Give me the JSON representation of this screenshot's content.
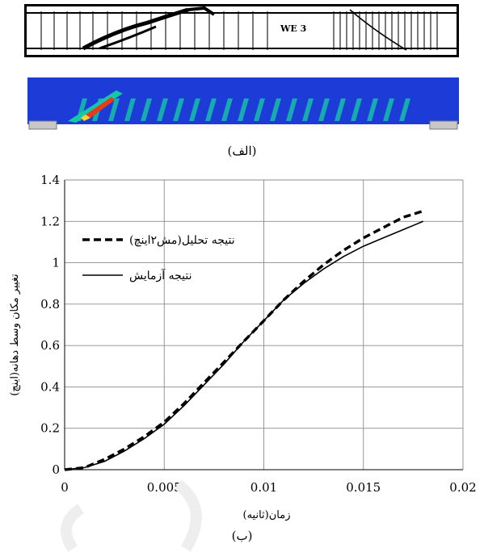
{
  "figure_a": {
    "caption": "(الف)",
    "beam_label": "WE 3",
    "fem_colors": {
      "base": "#1d3bd6",
      "crack": "#15c8a8",
      "hot": "#e53a1c",
      "warm": "#f4d22a"
    }
  },
  "figure_b": {
    "caption": "(ب)"
  },
  "chart_data": {
    "type": "line",
    "title": "",
    "xlabel": "زمان(ثانیه)",
    "ylabel": "تغییر مکان وسط دهانه(اینچ)",
    "xlim": [
      0,
      0.02
    ],
    "ylim": [
      0,
      1.4
    ],
    "x_ticks": [
      0,
      0.005,
      0.01,
      0.015,
      0.02
    ],
    "x_tick_labels": [
      "0",
      "0.005",
      "0.01",
      "0.015",
      "0.02"
    ],
    "y_ticks": [
      0,
      0.2,
      0.4,
      0.6,
      0.8,
      1,
      1.2,
      1.4
    ],
    "y_tick_labels": [
      "0",
      "0.2",
      "0.4",
      "0.6",
      "0.8",
      "1",
      "1.2",
      "1.4"
    ],
    "grid": true,
    "legend_position": "top-left",
    "series": [
      {
        "name": "نتیجه تحلیل(مش۲اینچ)",
        "style": "dashed",
        "color": "#000000",
        "x": [
          0,
          0.001,
          0.002,
          0.003,
          0.004,
          0.005,
          0.006,
          0.007,
          0.008,
          0.009,
          0.01,
          0.011,
          0.012,
          0.013,
          0.014,
          0.015,
          0.016,
          0.017,
          0.018
        ],
        "y": [
          0,
          0.01,
          0.05,
          0.1,
          0.16,
          0.23,
          0.32,
          0.42,
          0.52,
          0.62,
          0.72,
          0.82,
          0.91,
          0.99,
          1.06,
          1.12,
          1.17,
          1.22,
          1.25
        ]
      },
      {
        "name": "نتیجه آزمایش",
        "style": "solid",
        "color": "#000000",
        "x": [
          0,
          0.001,
          0.002,
          0.003,
          0.004,
          0.005,
          0.006,
          0.007,
          0.008,
          0.009,
          0.01,
          0.011,
          0.012,
          0.013,
          0.014,
          0.015,
          0.016,
          0.017,
          0.018
        ],
        "y": [
          0,
          0.01,
          0.04,
          0.09,
          0.15,
          0.22,
          0.31,
          0.41,
          0.51,
          0.62,
          0.72,
          0.82,
          0.9,
          0.97,
          1.03,
          1.08,
          1.12,
          1.16,
          1.2
        ]
      }
    ]
  }
}
